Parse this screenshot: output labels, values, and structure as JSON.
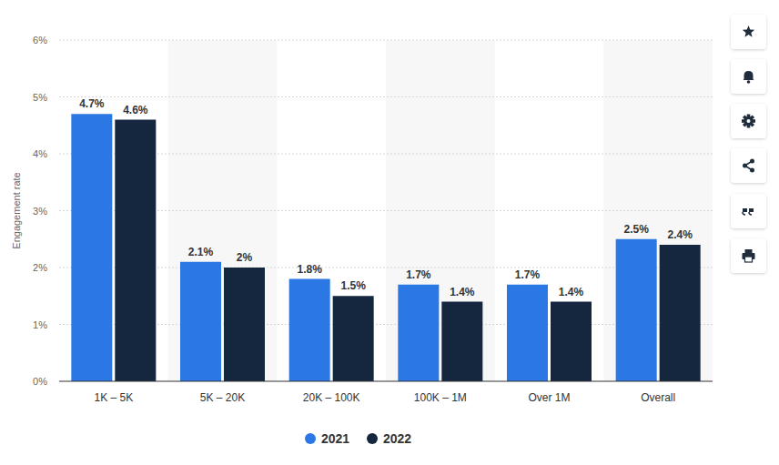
{
  "chart_data": {
    "type": "bar",
    "y_label": "Engagement rate",
    "categories": [
      "1K – 5K",
      "5K – 20K",
      "20K – 100K",
      "100K – 1M",
      "Over 1M",
      "Overall"
    ],
    "series": [
      {
        "name": "2021",
        "color": "#2b78e4",
        "values": [
          4.7,
          2.1,
          1.8,
          1.7,
          1.7,
          2.5
        ],
        "value_labels": [
          "4.7%",
          "2.1%",
          "1.8%",
          "1.7%",
          "1.7%",
          "2.5%"
        ]
      },
      {
        "name": "2022",
        "color": "#14273e",
        "values": [
          4.6,
          2,
          1.5,
          1.4,
          1.4,
          2.4
        ],
        "value_labels": [
          "4.6%",
          "2%",
          "1.5%",
          "1.4%",
          "1.4%",
          "2.4%"
        ]
      }
    ],
    "ylim": [
      0,
      6
    ],
    "yticks": [
      {
        "value": 0,
        "label": "0%"
      },
      {
        "value": 1,
        "label": "1%"
      },
      {
        "value": 2,
        "label": "2%"
      },
      {
        "value": 3,
        "label": "3%"
      },
      {
        "value": 4,
        "label": "4%"
      },
      {
        "value": 5,
        "label": "5%"
      },
      {
        "value": 6,
        "label": "6%"
      }
    ],
    "grid": true,
    "data_labels": true,
    "legend": "bottom"
  }
}
